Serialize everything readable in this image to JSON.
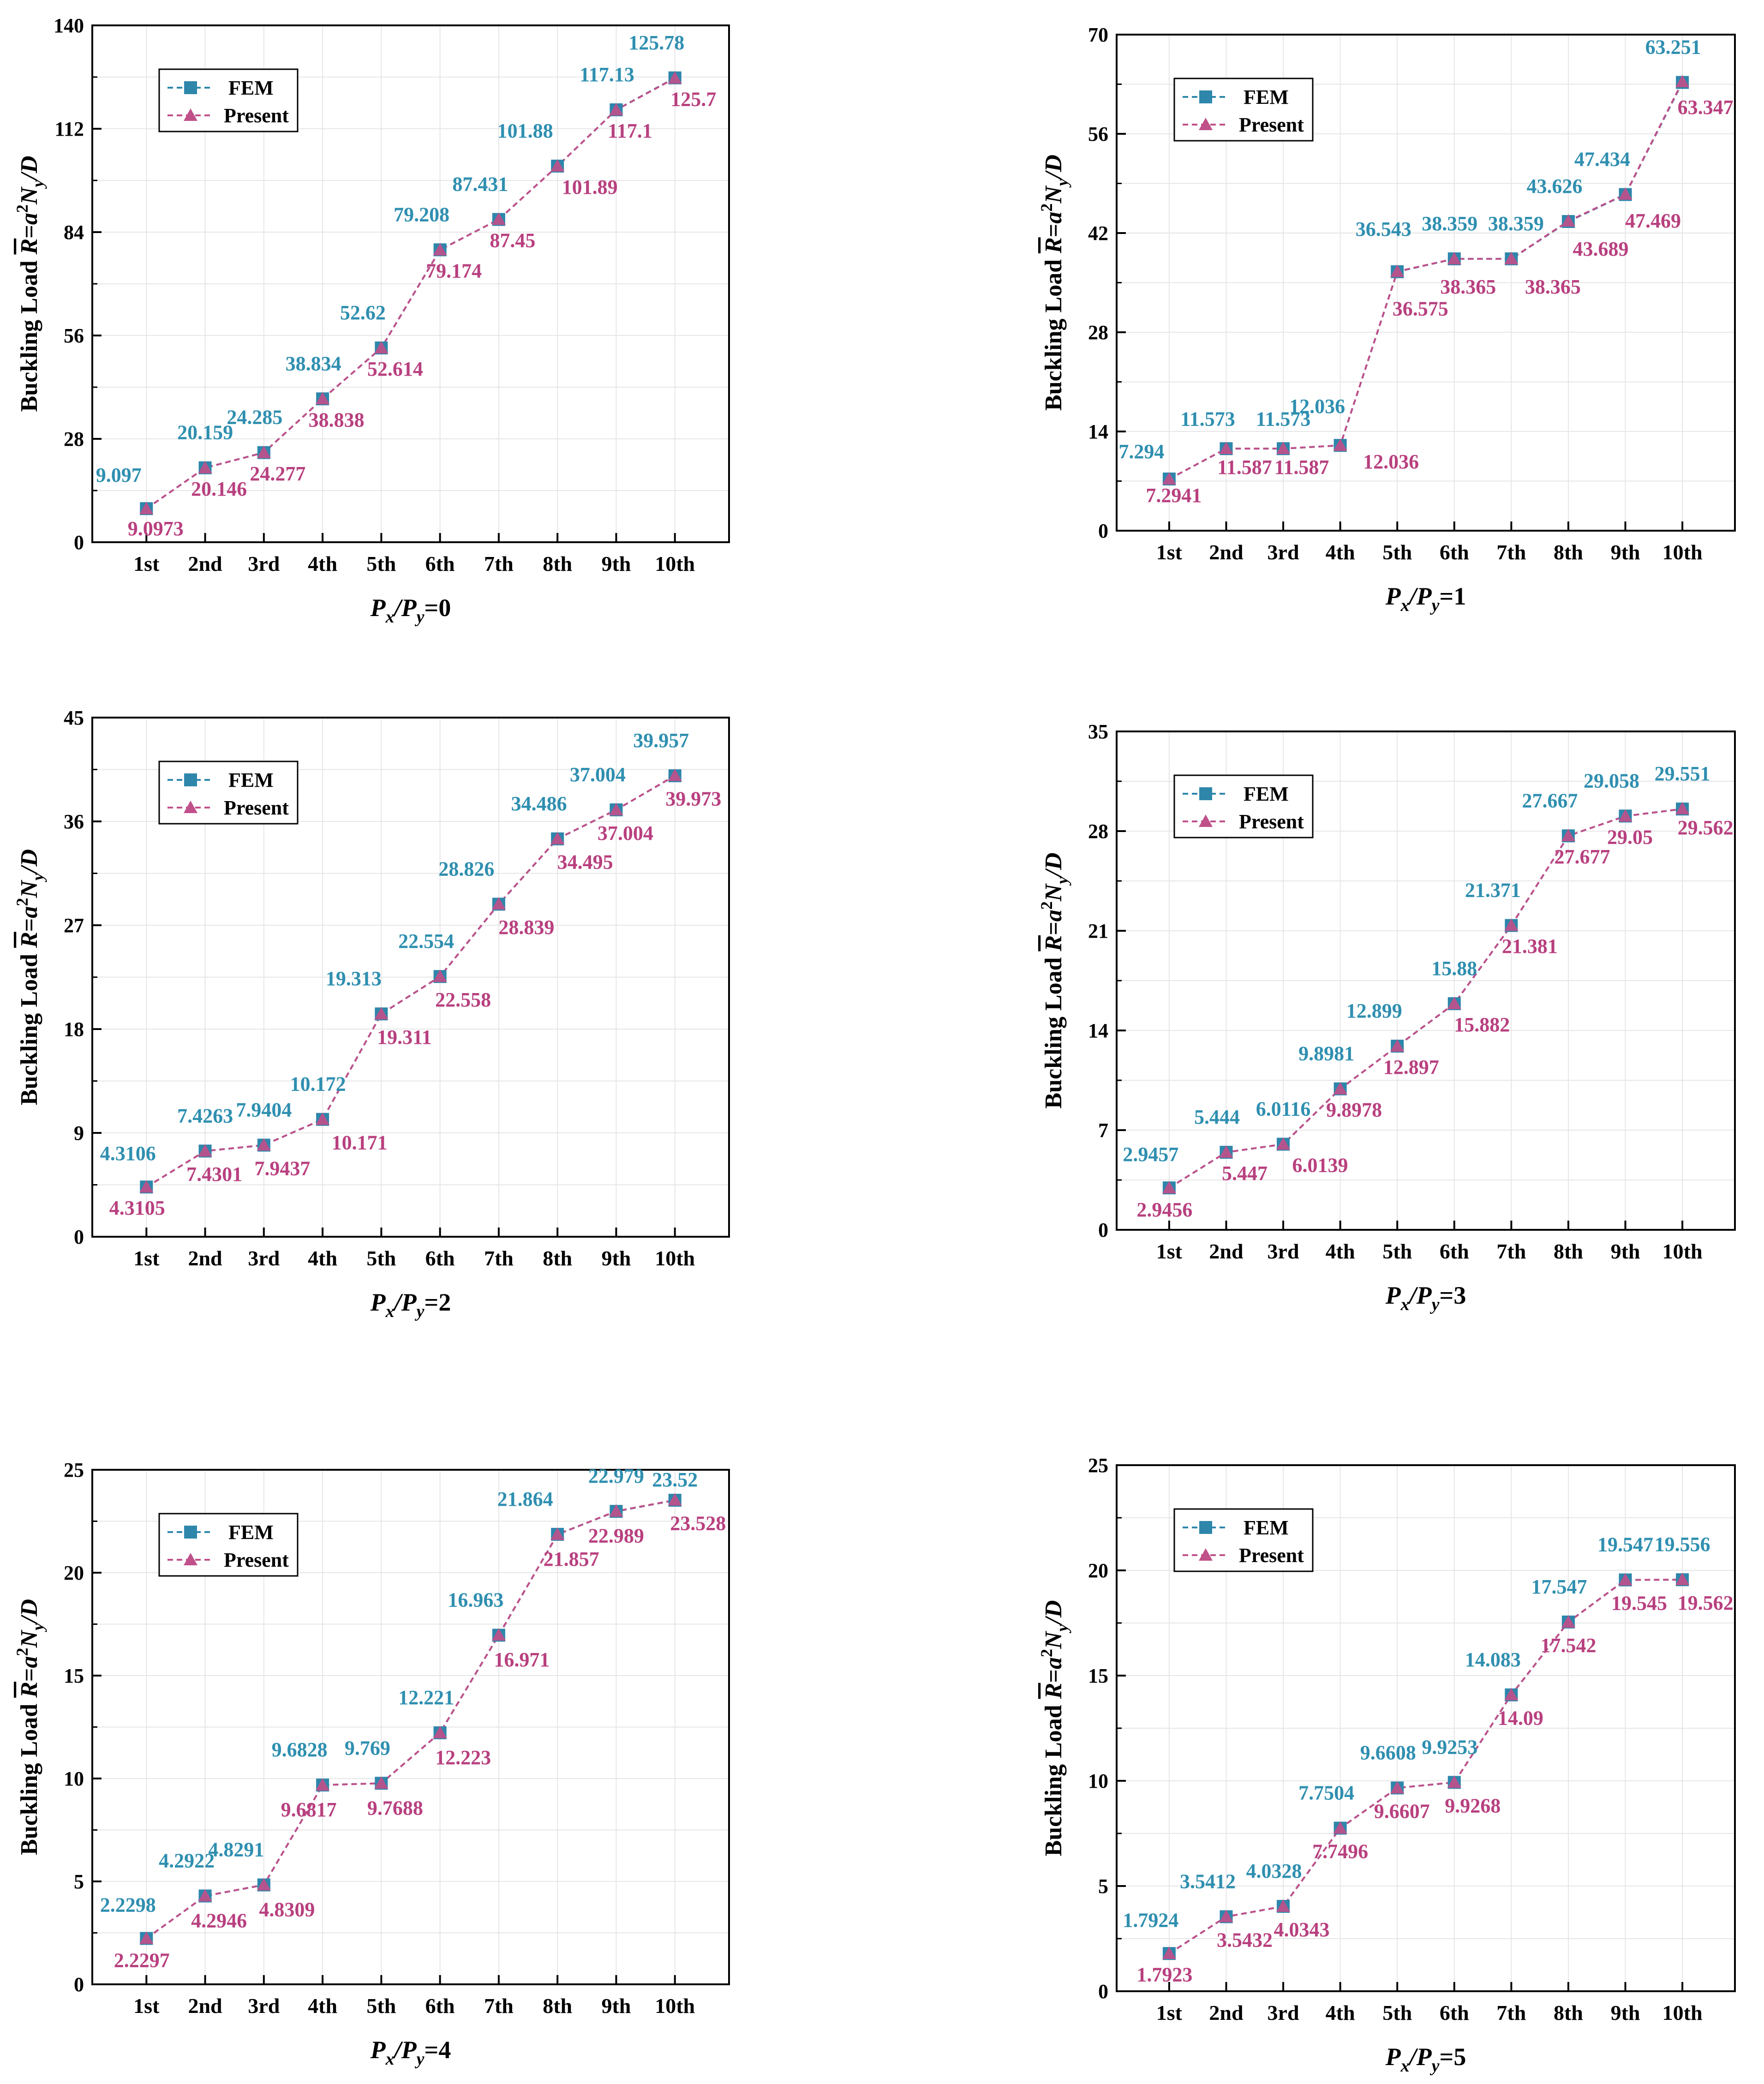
{
  "colors": {
    "fem": "#2e86ab",
    "present": "#c0508a",
    "fem_label": "#2f8fb0",
    "present_label": "#b8407f",
    "grid": "#e6e6e6",
    "axis": "#000000"
  },
  "legend": {
    "fem": "FEM",
    "present": "Present"
  },
  "chart_data": [
    {
      "type": "line",
      "title": "",
      "xlabel": "Px/Py=0",
      "xlabel_main": "P",
      "xlabel_sub1": "x",
      "xlabel_mid": "/P",
      "xlabel_sub2": "y",
      "xlabel_tail": "=0",
      "ylabel": "Buckling Load R=a²Ny/D",
      "categories": [
        "1st",
        "2nd",
        "3rd",
        "4th",
        "5th",
        "6th",
        "7th",
        "8th",
        "9th",
        "10th"
      ],
      "ylim": [
        0,
        140
      ],
      "yticks": [
        "0",
        "28",
        "56",
        "84",
        "112",
        "140"
      ],
      "series": [
        {
          "name": "FEM",
          "values": [
            9.097,
            20.159,
            24.285,
            38.834,
            52.62,
            79.208,
            87.431,
            101.88,
            117.13,
            125.78
          ],
          "labels": [
            "9.097",
            "20.159",
            "24.285",
            "38.834",
            "52.62",
            "79.208",
            "87.431",
            "101.88",
            "117.13",
            "125.78"
          ]
        },
        {
          "name": "Present",
          "values": [
            9.0973,
            20.146,
            24.277,
            38.838,
            52.614,
            79.174,
            87.45,
            101.89,
            117.1,
            125.7
          ],
          "labels": [
            "9.0973",
            "20.146",
            "24.277",
            "38.838",
            "52.614",
            "79.174",
            "87.45",
            "101.89",
            "117.1",
            "125.7"
          ]
        }
      ]
    },
    {
      "type": "line",
      "title": "",
      "xlabel": "Px/Py=1",
      "xlabel_main": "P",
      "xlabel_sub1": "x",
      "xlabel_mid": "/P",
      "xlabel_sub2": "y",
      "xlabel_tail": "=1",
      "ylabel": "Buckling Load R=a²Ny/D",
      "categories": [
        "1st",
        "2nd",
        "3rd",
        "4th",
        "5th",
        "6th",
        "7th",
        "8th",
        "9th",
        "10th"
      ],
      "ylim": [
        0,
        70
      ],
      "yticks": [
        "0",
        "14",
        "28",
        "42",
        "56",
        "70"
      ],
      "series": [
        {
          "name": "FEM",
          "values": [
            7.294,
            11.573,
            11.573,
            12.036,
            36.543,
            38.359,
            38.359,
            43.626,
            47.434,
            63.251
          ],
          "labels": [
            "7.294",
            "11.573",
            "11.573",
            "12.036",
            "36.543",
            "38.359",
            "38.359",
            "43.626",
            "47.434",
            "63.251"
          ]
        },
        {
          "name": "Present",
          "values": [
            7.2941,
            11.587,
            11.587,
            12.036,
            36.575,
            38.365,
            38.365,
            43.689,
            47.469,
            63.347
          ],
          "labels": [
            "7.2941",
            "11.587",
            "11.587",
            "12.036",
            "36.575",
            "38.365",
            "38.365",
            "43.689",
            "47.469",
            "63.347"
          ]
        }
      ]
    },
    {
      "type": "line",
      "title": "",
      "xlabel": "Px/Py=2",
      "xlabel_main": "P",
      "xlabel_sub1": "x",
      "xlabel_mid": "/P",
      "xlabel_sub2": "y",
      "xlabel_tail": "=2",
      "ylabel": "Buckling Load R=a²Ny/D",
      "categories": [
        "1st",
        "2nd",
        "3rd",
        "4th",
        "5th",
        "6th",
        "7th",
        "8th",
        "9th",
        "10th"
      ],
      "ylim": [
        0,
        45
      ],
      "yticks": [
        "0",
        "9",
        "18",
        "27",
        "36",
        "45"
      ],
      "series": [
        {
          "name": "FEM",
          "values": [
            4.3106,
            7.4263,
            7.9404,
            10.172,
            19.313,
            22.554,
            28.826,
            34.486,
            37.004,
            39.957
          ],
          "labels": [
            "4.3106",
            "7.4263",
            "7.9404",
            "10.172",
            "19.313",
            "22.554",
            "28.826",
            "34.486",
            "37.004",
            "39.957"
          ]
        },
        {
          "name": "Present",
          "values": [
            4.3105,
            7.4301,
            7.9437,
            10.171,
            19.311,
            22.558,
            28.839,
            34.495,
            37.004,
            39.973
          ],
          "labels": [
            "4.3105",
            "7.4301",
            "7.9437",
            "10.171",
            "19.311",
            "22.558",
            "28.839",
            "34.495",
            "37.004",
            "39.973"
          ]
        }
      ]
    },
    {
      "type": "line",
      "title": "",
      "xlabel": "Px/Py=3",
      "xlabel_main": "P",
      "xlabel_sub1": "x",
      "xlabel_mid": "/P",
      "xlabel_sub2": "y",
      "xlabel_tail": "=3",
      "ylabel": "Buckling Load R=a²Ny/D",
      "categories": [
        "1st",
        "2nd",
        "3rd",
        "4th",
        "5th",
        "6th",
        "7th",
        "8th",
        "9th",
        "10th"
      ],
      "ylim": [
        0,
        35
      ],
      "yticks": [
        "0",
        "7",
        "14",
        "21",
        "28",
        "35"
      ],
      "series": [
        {
          "name": "FEM",
          "values": [
            2.9457,
            5.444,
            6.0116,
            9.8981,
            12.899,
            15.88,
            21.371,
            27.667,
            29.058,
            29.551
          ],
          "labels": [
            "2.9457",
            "5.444",
            "6.0116",
            "9.8981",
            "12.899",
            "15.88",
            "21.371",
            "27.667",
            "29.058",
            "29.551"
          ]
        },
        {
          "name": "Present",
          "values": [
            2.9456,
            5.447,
            6.0139,
            9.8978,
            12.897,
            15.882,
            21.381,
            27.677,
            29.05,
            29.562
          ],
          "labels": [
            "2.9456",
            "5.447",
            "6.0139",
            "9.8978",
            "12.897",
            "15.882",
            "21.381",
            "27.677",
            "29.05",
            "29.562"
          ]
        }
      ]
    },
    {
      "type": "line",
      "title": "",
      "xlabel": "Px/Py=4",
      "xlabel_main": "P",
      "xlabel_sub1": "x",
      "xlabel_mid": "/P",
      "xlabel_sub2": "y",
      "xlabel_tail": "=4",
      "ylabel": "Buckling Load R=a²Ny/D",
      "categories": [
        "1st",
        "2nd",
        "3rd",
        "4th",
        "5th",
        "6th",
        "7th",
        "8th",
        "9th",
        "10th"
      ],
      "ylim": [
        0,
        25
      ],
      "yticks": [
        "0",
        "5",
        "10",
        "15",
        "20",
        "25"
      ],
      "series": [
        {
          "name": "FEM",
          "values": [
            2.2298,
            4.2922,
            4.8291,
            9.6828,
            9.769,
            12.221,
            16.963,
            21.864,
            22.979,
            23.52
          ],
          "labels": [
            "2.2298",
            "4.2922",
            "4.8291",
            "9.6828",
            "9.769",
            "12.221",
            "16.963",
            "21.864",
            "22.979",
            "23.52"
          ]
        },
        {
          "name": "Present",
          "values": [
            2.2297,
            4.2946,
            4.8309,
            9.6817,
            9.7688,
            12.223,
            16.971,
            21.857,
            22.989,
            23.528
          ],
          "labels": [
            "2.2297",
            "4.2946",
            "4.8309",
            "9.6817",
            "9.7688",
            "12.223",
            "16.971",
            "21.857",
            "22.989",
            "23.528"
          ]
        }
      ]
    },
    {
      "type": "line",
      "title": "",
      "xlabel": "Px/Py=5",
      "xlabel_main": "P",
      "xlabel_sub1": "x",
      "xlabel_mid": "/P",
      "xlabel_sub2": "y",
      "xlabel_tail": "=5",
      "ylabel": "Buckling Load R=a²Ny/D",
      "categories": [
        "1st",
        "2nd",
        "3rd",
        "4th",
        "5th",
        "6th",
        "7th",
        "8th",
        "9th",
        "10th"
      ],
      "ylim": [
        0,
        25
      ],
      "yticks": [
        "0",
        "5",
        "10",
        "15",
        "20",
        "25"
      ],
      "series": [
        {
          "name": "FEM",
          "values": [
            1.7924,
            3.5412,
            4.0328,
            7.7504,
            9.6608,
            9.9253,
            14.083,
            17.547,
            19.547,
            19.556
          ],
          "labels": [
            "1.7924",
            "3.5412",
            "4.0328",
            "7.7504",
            "9.6608",
            "9.9253",
            "14.083",
            "17.547",
            "19.547",
            "19.556"
          ]
        },
        {
          "name": "Present",
          "values": [
            1.7923,
            3.5432,
            4.0343,
            7.7496,
            9.6607,
            9.9268,
            14.09,
            17.542,
            19.545,
            19.562
          ],
          "labels": [
            "1.7923",
            "3.5432",
            "4.0343",
            "7.7496",
            "9.6607",
            "9.9268",
            "14.09",
            "17.542",
            "19.545",
            "19.562"
          ]
        }
      ]
    }
  ]
}
